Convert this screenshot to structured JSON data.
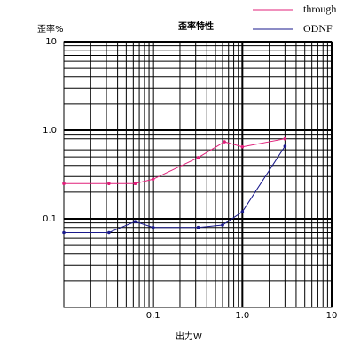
{
  "chart_data": {
    "type": "line",
    "title": "歪率特性",
    "xlabel": "出力W",
    "ylabel": "歪率%",
    "log_x": true,
    "log_y": true,
    "grid": true,
    "xlim": [
      0.01,
      10
    ],
    "ylim": [
      0.01,
      10
    ],
    "xticks": [
      0.1,
      {
        "value": 1,
        "label": "1.0"
      },
      10
    ],
    "yticks": [
      0.1,
      {
        "value": 1,
        "label": "1.0"
      },
      10
    ],
    "series": [
      {
        "name": "through",
        "color": "#e0207a",
        "x": [
          0.01,
          0.032,
          0.063,
          0.1,
          0.32,
          0.63,
          1,
          3
        ],
        "values": [
          0.25,
          0.25,
          0.25,
          0.28,
          0.49,
          0.74,
          0.65,
          0.8
        ]
      },
      {
        "name": "ODNF",
        "color": "#1a1a8c",
        "x": [
          0.01,
          0.032,
          0.063,
          0.1,
          0.32,
          0.6,
          1,
          3
        ],
        "values": [
          0.07,
          0.07,
          0.093,
          0.08,
          0.08,
          0.085,
          0.12,
          0.66
        ]
      }
    ]
  }
}
